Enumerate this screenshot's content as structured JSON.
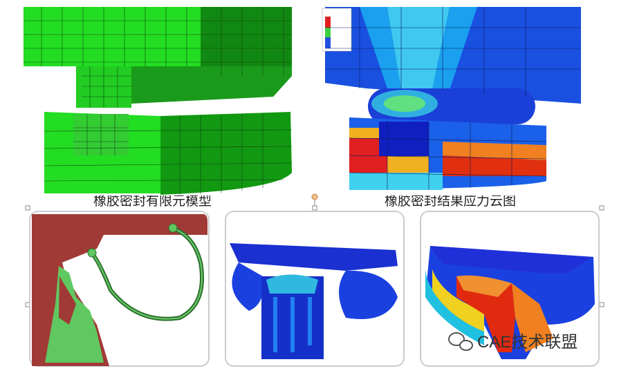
{
  "captions": [
    "橡胶密封有限元模型",
    "橡胶密封结果应力云图"
  ],
  "watermark": "CAE技术联盟"
}
